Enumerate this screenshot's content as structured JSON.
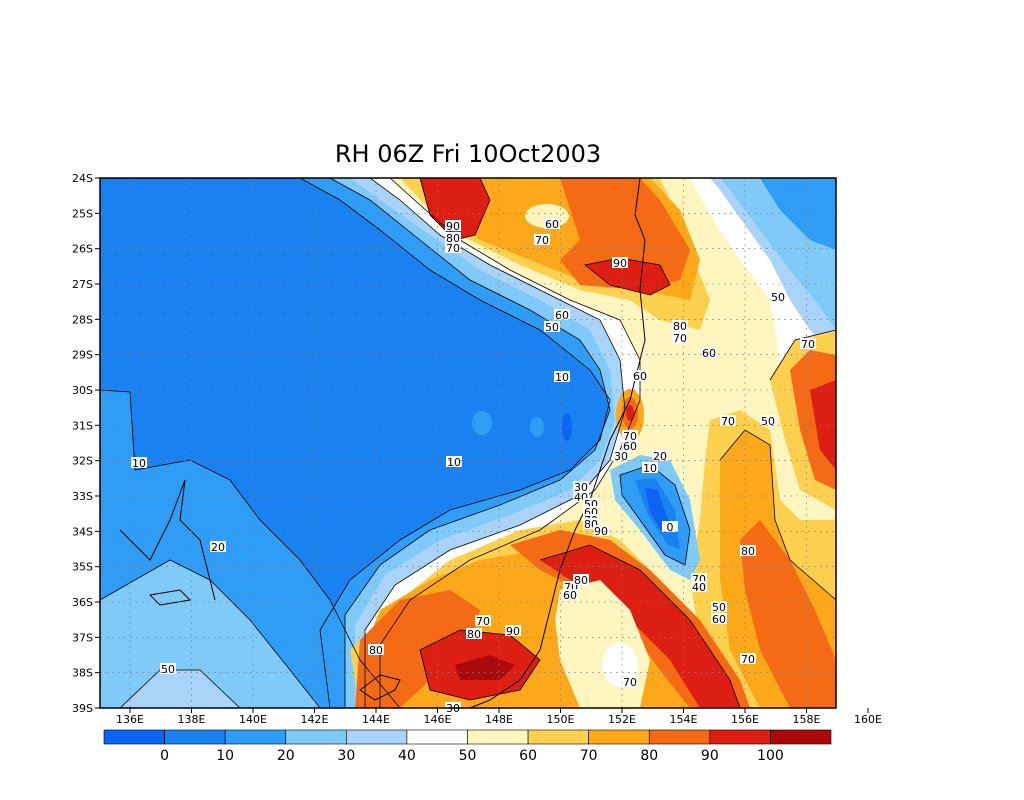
{
  "title": "RH 06Z Fri 10Oct2003",
  "lat_labels": [
    "24S",
    "25S",
    "26S",
    "27S",
    "28S",
    "29S",
    "30S",
    "31S",
    "32S",
    "33S",
    "34S",
    "35S",
    "36S",
    "37S",
    "38S",
    "39S"
  ],
  "lon_labels": [
    "136E",
    "138E",
    "140E",
    "142E",
    "144E",
    "146E",
    "148E",
    "150E",
    "152E",
    "154E",
    "156E",
    "158E",
    "160E"
  ],
  "colorbar": {
    "colors": [
      "#0b63f0",
      "#1a82f0",
      "#2f9df5",
      "#7fcaf9",
      "#a9d3f9",
      "#ffffff",
      "#fff6bf",
      "#fdd050",
      "#fca81a",
      "#f56a15",
      "#dd1e13",
      "#aa0a0a"
    ],
    "labels": [
      "0",
      "10",
      "20",
      "30",
      "40",
      "50",
      "60",
      "70",
      "80",
      "90",
      "100"
    ]
  },
  "contour_labels": [
    "90",
    "80",
    "70",
    "60",
    "70",
    "90",
    "60",
    "50",
    "80",
    "70",
    "60",
    "50",
    "70",
    "10",
    "60",
    "70",
    "60",
    "70",
    "50",
    "30",
    "20",
    "10",
    "10",
    "10",
    "30",
    "40",
    "50",
    "60",
    "70",
    "80",
    "90",
    "0",
    "20",
    "80",
    "70",
    "70",
    "80",
    "70",
    "60",
    "40",
    "50",
    "60",
    "90",
    "80",
    "70",
    "80",
    "70",
    "50",
    "30",
    "80"
  ]
}
